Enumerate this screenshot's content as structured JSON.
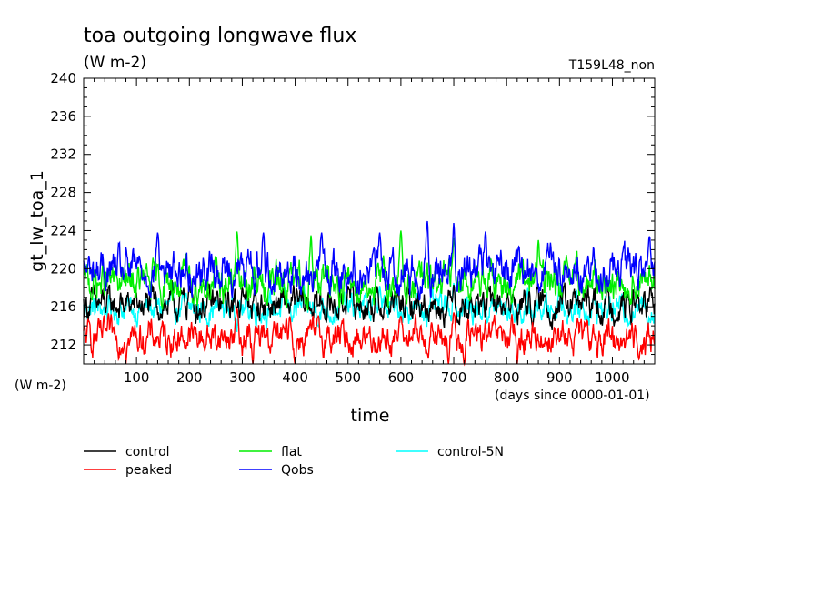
{
  "chart_data": {
    "type": "line",
    "title": "toa outgoing longwave flux",
    "subtitle": "(W m-2)",
    "run_label": "T159L48_non",
    "ylabel": "gt_lw_toa_1",
    "yunit": "(W m-2)",
    "xlabel": "time",
    "xunit": "(days since 0000-01-01)",
    "xlim": [
      0,
      1080
    ],
    "ylim": [
      210,
      240
    ],
    "xticks": [
      100,
      200,
      300,
      400,
      500,
      600,
      700,
      800,
      900,
      1000
    ],
    "yticks": [
      212,
      216,
      220,
      224,
      228,
      232,
      236,
      240
    ],
    "grid": false,
    "legend_position": "bottom",
    "series": [
      {
        "name": "control",
        "color": "#000000",
        "mean": 216.2,
        "amp": 1.6,
        "peaks": [
          [
            200,
            218.2
          ],
          [
            300,
            218.0
          ],
          [
            500,
            218.2
          ],
          [
            700,
            218.3
          ]
        ]
      },
      {
        "name": "peaked",
        "color": "#ff0000",
        "mean": 212.8,
        "amp": 1.6,
        "peaks": [
          [
            80,
            215.3
          ],
          [
            290,
            215.8
          ],
          [
            390,
            215.0
          ],
          [
            600,
            215.0
          ],
          [
            700,
            215.4
          ]
        ],
        "troughs": [
          [
            80,
            210.0
          ],
          [
            320,
            210.0
          ],
          [
            400,
            210.0
          ],
          [
            690,
            210.0
          ],
          [
            720,
            210.0
          ],
          [
            820,
            210.0
          ],
          [
            1050,
            210.5
          ]
        ]
      },
      {
        "name": "flat",
        "color": "#00ee00",
        "mean": 218.5,
        "amp": 1.9,
        "peaks": [
          [
            290,
            223.9
          ],
          [
            430,
            223.5
          ],
          [
            600,
            224.0
          ],
          [
            700,
            223.2
          ],
          [
            860,
            223.0
          ]
        ]
      },
      {
        "name": "Qobs",
        "color": "#0000ff",
        "mean": 219.8,
        "amp": 2.0,
        "peaks": [
          [
            140,
            223.8
          ],
          [
            340,
            223.8
          ],
          [
            450,
            223.8
          ],
          [
            560,
            223.8
          ],
          [
            650,
            225.0
          ],
          [
            700,
            224.8
          ],
          [
            760,
            223.9
          ],
          [
            1070,
            223.4
          ]
        ]
      },
      {
        "name": "control-5N",
        "color": "#00ffff",
        "mean": 215.8,
        "amp": 1.4,
        "peaks": [
          [
            380,
            218.0
          ],
          [
            560,
            218.2
          ],
          [
            700,
            218.5
          ],
          [
            900,
            218.5
          ]
        ]
      }
    ]
  }
}
